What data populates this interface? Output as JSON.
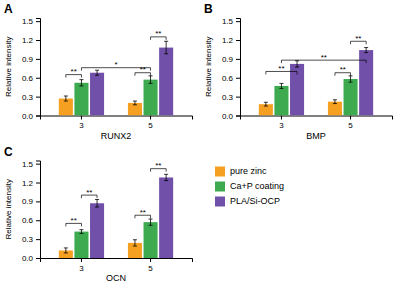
{
  "chart_data": [
    {
      "type": "bar",
      "title": "A",
      "x_label": "RUNX2",
      "y_label": "Relative intensity",
      "categories": [
        "3",
        "5"
      ],
      "series": [
        {
          "color": "#F5A020",
          "values": [
            0.27,
            0.2
          ],
          "errors": [
            0.04,
            0.03
          ]
        },
        {
          "color": "#3DAA50",
          "values": [
            0.52,
            0.57
          ],
          "errors": [
            0.05,
            0.06
          ]
        },
        {
          "color": "#7050A8",
          "values": [
            0.68,
            1.08
          ],
          "errors": [
            0.04,
            0.1
          ]
        }
      ],
      "ylim": [
        0,
        1.55
      ],
      "yticks": [
        {
          "value": 0.0,
          "label": "0.0"
        },
        0.3,
        0.6,
        0.9,
        1.2,
        1.5
      ],
      "grid": false,
      "annotations": [
        {
          "text": "**",
          "from": [
            0,
            0
          ],
          "to": [
            0,
            1
          ],
          "y": 0.65
        },
        {
          "text": "*",
          "from": [
            0,
            1
          ],
          "to": [
            1,
            1
          ],
          "y": 0.76
        },
        {
          "text": "**",
          "from": [
            1,
            0
          ],
          "to": [
            1,
            1
          ],
          "y": 0.68
        },
        {
          "text": "**",
          "from": [
            1,
            1
          ],
          "to": [
            1,
            2
          ],
          "y": 1.25
        }
      ]
    },
    {
      "type": "bar",
      "title": "B",
      "x_label": "BMP",
      "y_label": "Relative intensity",
      "categories": [
        "3",
        "5"
      ],
      "series": [
        {
          "color": "#F5A020",
          "values": [
            0.18,
            0.22
          ],
          "errors": [
            0.03,
            0.03
          ]
        },
        {
          "color": "#3DAA50",
          "values": [
            0.47,
            0.58
          ],
          "errors": [
            0.04,
            0.05
          ]
        },
        {
          "color": "#7050A8",
          "values": [
            0.82,
            1.04
          ],
          "errors": [
            0.05,
            0.04
          ]
        }
      ],
      "ylim": [
        0,
        1.55
      ],
      "yticks": [
        {
          "value": 0.0,
          "label": "0.0"
        },
        0.3,
        0.6,
        0.9,
        1.2,
        1.5
      ],
      "grid": false,
      "annotations": [
        {
          "text": "**",
          "from": [
            0,
            0
          ],
          "to": [
            0,
            2
          ],
          "y": 0.7
        },
        {
          "text": "**",
          "from": [
            0,
            1
          ],
          "to": [
            1,
            2
          ],
          "y": 0.88
        },
        {
          "text": "**",
          "from": [
            1,
            0
          ],
          "to": [
            1,
            1
          ],
          "y": 0.68
        },
        {
          "text": "**",
          "from": [
            1,
            1
          ],
          "to": [
            1,
            2
          ],
          "y": 1.18
        }
      ]
    },
    {
      "type": "bar",
      "title": "C",
      "x_label": "OCN",
      "y_label": "Relative intensity",
      "categories": [
        "3",
        "5"
      ],
      "series": [
        {
          "name": "pure zinc",
          "color": "#F5A020",
          "values": [
            0.12,
            0.24
          ],
          "errors": [
            0.04,
            0.05
          ]
        },
        {
          "name": "Ca+P coating",
          "color": "#3DAA50",
          "values": [
            0.42,
            0.57
          ],
          "errors": [
            0.03,
            0.05
          ]
        },
        {
          "name": "PLA/Si-OCP",
          "color": "#7050A8",
          "values": [
            0.87,
            1.28
          ],
          "errors": [
            0.06,
            0.05
          ]
        }
      ],
      "ylim": [
        0,
        1.55
      ],
      "yticks": [
        {
          "value": 0.0,
          "label": "0.0"
        },
        0.3,
        0.6,
        0.9,
        1.2,
        1.5
      ],
      "grid": false,
      "legend": "right",
      "annotations": [
        {
          "text": "**",
          "from": [
            0,
            0
          ],
          "to": [
            0,
            1
          ],
          "y": 0.55
        },
        {
          "text": "**",
          "from": [
            0,
            1
          ],
          "to": [
            0,
            2
          ],
          "y": 1.0
        },
        {
          "text": "**",
          "from": [
            1,
            0
          ],
          "to": [
            1,
            1
          ],
          "y": 0.68
        },
        {
          "text": "**",
          "from": [
            1,
            1
          ],
          "to": [
            1,
            2
          ],
          "y": 1.42
        }
      ]
    }
  ]
}
